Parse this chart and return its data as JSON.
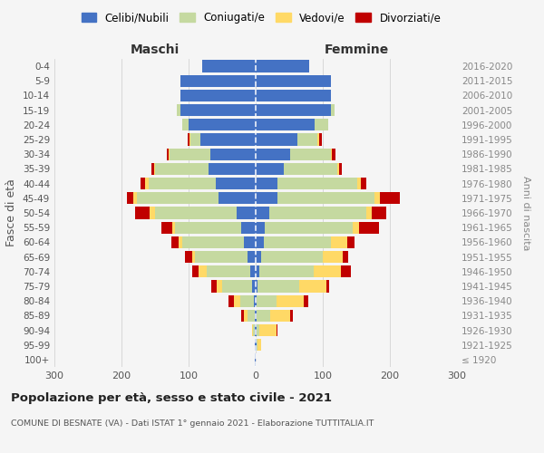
{
  "age_groups": [
    "100+",
    "95-99",
    "90-94",
    "85-89",
    "80-84",
    "75-79",
    "70-74",
    "65-69",
    "60-64",
    "55-59",
    "50-54",
    "45-49",
    "40-44",
    "35-39",
    "30-34",
    "25-29",
    "20-24",
    "15-19",
    "10-14",
    "5-9",
    "0-4"
  ],
  "birth_years": [
    "≤ 1920",
    "1921-1925",
    "1926-1930",
    "1931-1935",
    "1936-1940",
    "1941-1945",
    "1946-1950",
    "1951-1955",
    "1956-1960",
    "1961-1965",
    "1966-1970",
    "1971-1975",
    "1976-1980",
    "1981-1985",
    "1986-1990",
    "1991-1995",
    "1996-2000",
    "2001-2005",
    "2006-2010",
    "2011-2015",
    "2016-2020"
  ],
  "maschi_celibi": [
    1,
    1,
    1,
    2,
    3,
    5,
    8,
    12,
    18,
    22,
    28,
    55,
    60,
    70,
    68,
    82,
    100,
    112,
    112,
    112,
    80
  ],
  "maschi_coniugati": [
    0,
    0,
    3,
    10,
    20,
    45,
    65,
    78,
    92,
    98,
    122,
    122,
    100,
    80,
    60,
    15,
    10,
    5,
    0,
    0,
    0
  ],
  "maschi_vedovi": [
    0,
    0,
    2,
    5,
    10,
    8,
    12,
    5,
    5,
    5,
    8,
    5,
    5,
    2,
    2,
    2,
    0,
    0,
    0,
    0,
    0
  ],
  "maschi_divorziati": [
    0,
    0,
    0,
    5,
    8,
    8,
    10,
    10,
    10,
    15,
    22,
    10,
    6,
    3,
    2,
    2,
    0,
    0,
    0,
    0,
    0
  ],
  "femmine_nubili": [
    0,
    1,
    1,
    1,
    1,
    3,
    5,
    8,
    12,
    14,
    20,
    32,
    32,
    42,
    52,
    62,
    88,
    112,
    112,
    112,
    80
  ],
  "femmine_coniugate": [
    0,
    2,
    5,
    20,
    30,
    62,
    82,
    92,
    100,
    130,
    145,
    145,
    120,
    80,
    60,
    30,
    20,
    5,
    0,
    0,
    0
  ],
  "femmine_vedove": [
    0,
    5,
    25,
    30,
    40,
    40,
    40,
    30,
    25,
    10,
    8,
    8,
    5,
    2,
    2,
    2,
    0,
    0,
    0,
    0,
    0
  ],
  "femmine_divorziate": [
    0,
    0,
    2,
    5,
    8,
    5,
    15,
    8,
    10,
    30,
    22,
    30,
    8,
    5,
    5,
    5,
    0,
    0,
    0,
    0,
    0
  ],
  "color_celibi": "#4472c4",
  "color_coniugati": "#c5d9a0",
  "color_vedovi": "#ffd966",
  "color_divorziati": "#c00000",
  "xlim": 300,
  "title": "Popolazione per età, sesso e stato civile - 2021",
  "subtitle": "COMUNE DI BESNATE (VA) - Dati ISTAT 1° gennaio 2021 - Elaborazione TUTTITALIA.IT",
  "ylabel_left": "Fasce di età",
  "ylabel_right": "Anni di nascita",
  "label_maschi": "Maschi",
  "label_femmine": "Femmine",
  "legend_labels": [
    "Celibi/Nubili",
    "Coniugati/e",
    "Vedovi/e",
    "Divorziati/e"
  ],
  "bg_color": "#f5f5f5"
}
